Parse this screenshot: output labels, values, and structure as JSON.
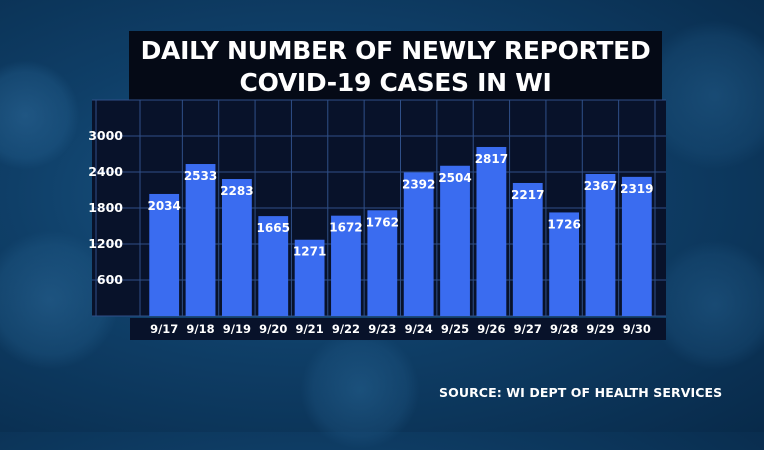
{
  "title_line1": "DAILY NUMBER OF NEWLY REPORTED",
  "title_line2": "COVID-19 CASES IN WI",
  "source": "SOURCE: WI DEPT OF HEALTH SERVICES",
  "colors": {
    "bar": "#3a6cf0",
    "plot_bg": "#08122a",
    "grid": "#2f4f88",
    "text": "#ffffff"
  },
  "chart_data": {
    "type": "bar",
    "title": "DAILY NUMBER OF NEWLY REPORTED COVID-19 CASES IN WI",
    "categories": [
      "9/17",
      "9/18",
      "9/19",
      "9/20",
      "9/21",
      "9/22",
      "9/23",
      "9/24",
      "9/25",
      "9/26",
      "9/27",
      "9/28",
      "9/29",
      "9/30"
    ],
    "values": [
      2034,
      2533,
      2283,
      1665,
      1271,
      1672,
      1762,
      2392,
      2504,
      2817,
      2217,
      1726,
      2367,
      2319
    ],
    "yticks": [
      600,
      1200,
      1800,
      2400,
      3000
    ],
    "ylim": [
      0,
      3500
    ],
    "grid": true,
    "xlabel": "",
    "ylabel": ""
  }
}
